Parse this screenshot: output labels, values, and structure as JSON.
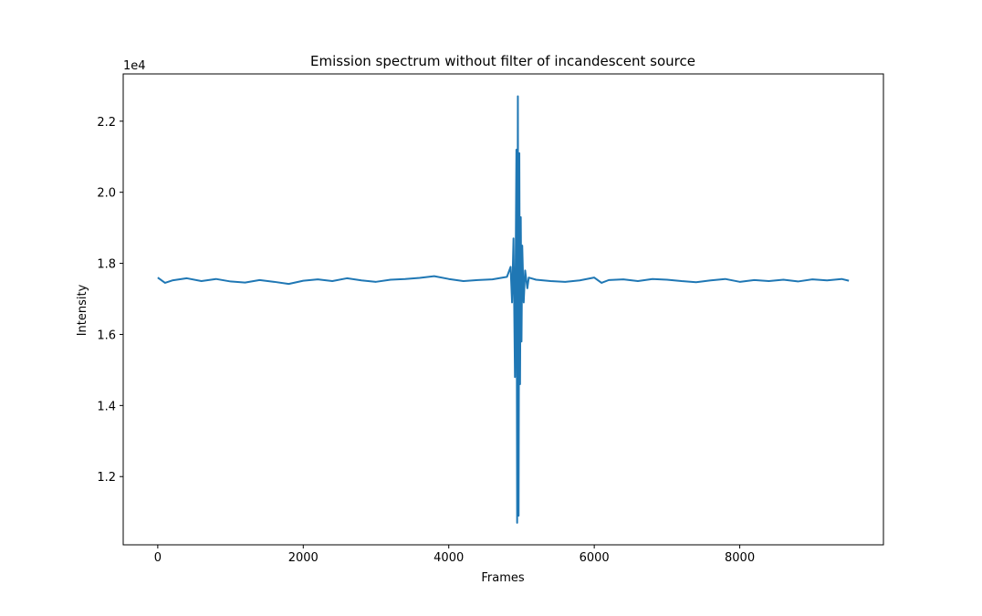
{
  "chart_data": {
    "type": "line",
    "title": "Emission spectrum without filter of incandescent source",
    "x_label": "Frames",
    "y_label": "Intensity",
    "y_offset_label": "1e4",
    "xlim": [
      -475,
      9975
    ],
    "xticks": [
      0,
      2000,
      4000,
      6000,
      8000
    ],
    "ylim": [
      10080,
      23330
    ],
    "yticks": [
      {
        "value": 12000,
        "label": "1.2"
      },
      {
        "value": 14000,
        "label": "1.4"
      },
      {
        "value": 16000,
        "label": "1.6"
      },
      {
        "value": 18000,
        "label": "1.8"
      },
      {
        "value": 20000,
        "label": "2.0"
      },
      {
        "value": 22000,
        "label": "2.2"
      }
    ],
    "series": [
      {
        "name": "Intensity",
        "color": "#1f77b4",
        "x": [
          0,
          100,
          200,
          400,
          600,
          800,
          1000,
          1200,
          1400,
          1600,
          1800,
          2000,
          2200,
          2400,
          2600,
          2800,
          3000,
          3200,
          3400,
          3600,
          3800,
          4000,
          4200,
          4400,
          4600,
          4800,
          4850,
          4870,
          4890,
          4910,
          4930,
          4940,
          4950,
          4960,
          4970,
          4980,
          4990,
          5000,
          5010,
          5030,
          5050,
          5080,
          5100,
          5200,
          5400,
          5600,
          5800,
          6000,
          6100,
          6200,
          6400,
          6600,
          6800,
          7000,
          7200,
          7400,
          7600,
          7800,
          8000,
          8200,
          8400,
          8600,
          8800,
          9000,
          9200,
          9400,
          9500
        ],
        "values": [
          17600,
          17450,
          17520,
          17580,
          17500,
          17560,
          17490,
          17460,
          17530,
          17480,
          17420,
          17510,
          17550,
          17500,
          17580,
          17520,
          17480,
          17540,
          17560,
          17590,
          17640,
          17560,
          17500,
          17530,
          17550,
          17620,
          17900,
          16900,
          18700,
          14800,
          21200,
          10700,
          22700,
          10900,
          21100,
          14600,
          19300,
          15800,
          18500,
          16900,
          17800,
          17300,
          17600,
          17540,
          17500,
          17480,
          17520,
          17600,
          17450,
          17530,
          17550,
          17500,
          17560,
          17540,
          17500,
          17470,
          17520,
          17560,
          17480,
          17530,
          17500,
          17540,
          17490,
          17550,
          17520,
          17560,
          17510
        ]
      }
    ]
  }
}
